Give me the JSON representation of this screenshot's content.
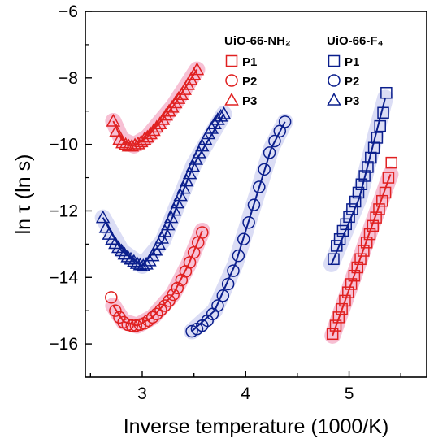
{
  "chart_data": {
    "type": "scatter",
    "xlabel": "Inverse temperature (1000/K)",
    "ylabel": "ln τ (ln s)",
    "xlim": [
      2.45,
      5.75
    ],
    "ylim": [
      -17,
      -6
    ],
    "xticks": [
      3,
      4,
      5
    ],
    "yticks": [
      -6,
      -8,
      -10,
      -12,
      -14,
      -16
    ],
    "legend_groups": [
      {
        "title": "UiO-66-NH₂",
        "color": "#e02020",
        "entries": [
          "P1",
          "P2",
          "P3"
        ]
      },
      {
        "title": "UiO-66-F₄",
        "color": "#0a1e8c",
        "entries": [
          "P1",
          "P2",
          "P3"
        ]
      }
    ],
    "colors": {
      "nh2": "#e02020",
      "f4": "#0a1e8c",
      "glow_red": "#f6b9cf",
      "glow_blue": "#d7d9f4"
    },
    "series": [
      {
        "name": "UiO-66-NH₂ P3",
        "marker": "triangle",
        "color": "#e02020",
        "x": [
          2.72,
          2.75,
          2.78,
          2.81,
          2.84,
          2.87,
          2.9,
          2.93,
          2.96,
          2.99,
          3.02,
          3.05,
          3.08,
          3.11,
          3.14,
          3.17,
          3.2,
          3.23,
          3.26,
          3.29,
          3.32,
          3.35,
          3.38,
          3.41,
          3.44,
          3.47,
          3.5,
          3.53
        ],
        "y": [
          -9.3,
          -9.6,
          -9.85,
          -9.95,
          -10.0,
          -10.05,
          -10.05,
          -10.02,
          -9.98,
          -9.92,
          -9.85,
          -9.78,
          -9.68,
          -9.58,
          -9.48,
          -9.38,
          -9.25,
          -9.12,
          -9.0,
          -8.88,
          -8.75,
          -8.62,
          -8.5,
          -8.35,
          -8.2,
          -8.05,
          -7.9,
          -7.75
        ],
        "fit": [
          [
            2.72,
            -9.3
          ],
          [
            2.8,
            -9.85
          ],
          [
            2.92,
            -10.03
          ],
          [
            3.05,
            -9.78
          ],
          [
            3.3,
            -8.85
          ],
          [
            3.53,
            -7.75
          ]
        ]
      },
      {
        "name": "UiO-66-NH₂ P2",
        "marker": "circle",
        "color": "#e02020",
        "x": [
          2.7,
          2.74,
          2.78,
          2.82,
          2.86,
          2.9,
          2.94,
          2.98,
          3.02,
          3.06,
          3.1,
          3.14,
          3.18,
          3.22,
          3.26,
          3.3,
          3.34,
          3.38,
          3.42,
          3.46,
          3.5,
          3.54,
          3.58
        ],
        "y": [
          -14.6,
          -15.0,
          -15.2,
          -15.35,
          -15.42,
          -15.45,
          -15.45,
          -15.42,
          -15.38,
          -15.3,
          -15.2,
          -15.1,
          -14.98,
          -14.85,
          -14.7,
          -14.52,
          -14.32,
          -14.08,
          -13.82,
          -13.55,
          -13.25,
          -12.95,
          -12.65
        ],
        "fit": [
          [
            2.72,
            -14.85
          ],
          [
            2.82,
            -15.33
          ],
          [
            2.95,
            -15.45
          ],
          [
            3.1,
            -15.2
          ],
          [
            3.3,
            -14.5
          ],
          [
            3.45,
            -13.6
          ],
          [
            3.58,
            -12.6
          ]
        ]
      },
      {
        "name": "UiO-66-F₄ P3",
        "marker": "triangle",
        "color": "#0a1e8c",
        "x": [
          2.62,
          2.65,
          2.68,
          2.71,
          2.74,
          2.77,
          2.8,
          2.83,
          2.86,
          2.89,
          2.92,
          2.95,
          2.98,
          3.01,
          3.04,
          3.07,
          3.1,
          3.13,
          3.16,
          3.19,
          3.22,
          3.25,
          3.28,
          3.31,
          3.34,
          3.37,
          3.4,
          3.43,
          3.46,
          3.49,
          3.52,
          3.55,
          3.58,
          3.61,
          3.64,
          3.67,
          3.7,
          3.73,
          3.76,
          3.79
        ],
        "y": [
          -12.2,
          -12.5,
          -12.7,
          -12.85,
          -12.98,
          -13.1,
          -13.2,
          -13.3,
          -13.38,
          -13.45,
          -13.52,
          -13.58,
          -13.62,
          -13.65,
          -13.6,
          -13.5,
          -13.35,
          -13.18,
          -13.0,
          -12.82,
          -12.62,
          -12.42,
          -12.2,
          -11.98,
          -11.76,
          -11.54,
          -11.32,
          -11.1,
          -10.88,
          -10.66,
          -10.45,
          -10.25,
          -10.05,
          -9.85,
          -9.68,
          -9.52,
          -9.38,
          -9.25,
          -9.15,
          -9.08
        ],
        "fit": [
          [
            2.62,
            -12.2
          ],
          [
            2.8,
            -13.2
          ],
          [
            3.0,
            -13.65
          ],
          [
            3.2,
            -12.9
          ],
          [
            3.5,
            -10.6
          ],
          [
            3.79,
            -9.08
          ]
        ]
      },
      {
        "name": "UiO-66-F₄ P2",
        "marker": "circle",
        "color": "#0a1e8c",
        "x": [
          3.48,
          3.53,
          3.58,
          3.63,
          3.68,
          3.73,
          3.78,
          3.83,
          3.88,
          3.93,
          3.98,
          4.03,
          4.08,
          4.13,
          4.18,
          4.23,
          4.28,
          4.33,
          4.38
        ],
        "y": [
          -15.62,
          -15.55,
          -15.45,
          -15.3,
          -15.1,
          -14.85,
          -14.55,
          -14.2,
          -13.8,
          -13.35,
          -12.85,
          -12.35,
          -11.82,
          -11.28,
          -10.75,
          -10.25,
          -9.9,
          -9.6,
          -9.32
        ],
        "fit": [
          [
            3.48,
            -15.62
          ],
          [
            3.7,
            -15.0
          ],
          [
            3.9,
            -13.6
          ],
          [
            4.1,
            -11.6
          ],
          [
            4.25,
            -10.1
          ],
          [
            4.38,
            -9.32
          ]
        ]
      },
      {
        "name": "UiO-66-F₄ P1",
        "marker": "square",
        "color": "#0a1e8c",
        "x": [
          4.85,
          4.88,
          4.91,
          4.94,
          4.97,
          5.0,
          5.03,
          5.06,
          5.09,
          5.12,
          5.15,
          5.18,
          5.21,
          5.24,
          5.27,
          5.3,
          5.33,
          5.36
        ],
        "y": [
          -13.45,
          -13.05,
          -12.85,
          -12.6,
          -12.4,
          -12.18,
          -11.95,
          -11.72,
          -11.45,
          -11.2,
          -10.95,
          -10.68,
          -10.4,
          -10.1,
          -9.8,
          -9.45,
          -9.05,
          -8.45
        ],
        "fit": [
          [
            4.83,
            -13.6
          ],
          [
            5.1,
            -11.6
          ],
          [
            5.35,
            -8.6
          ]
        ]
      },
      {
        "name": "UiO-66-NH₂ P1",
        "marker": "square",
        "color": "#e02020",
        "x": [
          4.84,
          4.87,
          4.9,
          4.93,
          4.96,
          4.99,
          5.02,
          5.05,
          5.08,
          5.11,
          5.14,
          5.17,
          5.2,
          5.23,
          5.26,
          5.29,
          5.32,
          5.35,
          5.38,
          5.41
        ],
        "y": [
          -15.7,
          -15.45,
          -15.2,
          -14.95,
          -14.7,
          -14.45,
          -14.2,
          -13.95,
          -13.7,
          -13.45,
          -13.2,
          -12.95,
          -12.7,
          -12.45,
          -12.2,
          -11.95,
          -11.7,
          -11.45,
          -11.0,
          -10.55
        ],
        "fit": [
          [
            4.84,
            -15.75
          ],
          [
            5.4,
            -10.9
          ]
        ]
      }
    ]
  }
}
